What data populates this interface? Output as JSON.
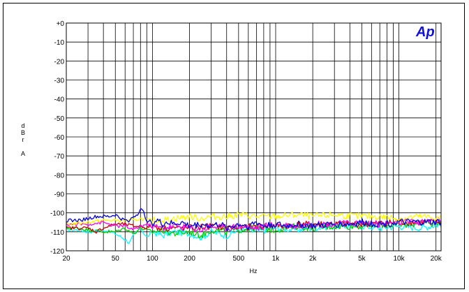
{
  "logo": {
    "text": "Ap",
    "color": "#1010e0"
  },
  "chart_data": {
    "type": "line",
    "title": "",
    "xlabel": "Hz",
    "ylabel": "dBr A",
    "ylabel_chars": [
      "d",
      "B",
      "r",
      "",
      "A"
    ],
    "x_scale": "log",
    "xlim": [
      20,
      22000
    ],
    "ylim": [
      -120,
      0
    ],
    "grid": true,
    "x_ticks": [
      {
        "value": 20,
        "label": "20"
      },
      {
        "value": 50,
        "label": "50"
      },
      {
        "value": 100,
        "label": "100"
      },
      {
        "value": 200,
        "label": "200"
      },
      {
        "value": 500,
        "label": "500"
      },
      {
        "value": 1000,
        "label": "1k"
      },
      {
        "value": 2000,
        "label": "2k"
      },
      {
        "value": 5000,
        "label": "5k"
      },
      {
        "value": 10000,
        "label": "10k"
      },
      {
        "value": 20000,
        "label": "20k"
      }
    ],
    "y_ticks": [
      {
        "value": 0,
        "label": "+0"
      },
      {
        "value": -10,
        "label": "-10"
      },
      {
        "value": -20,
        "label": "-20"
      },
      {
        "value": -30,
        "label": "-30"
      },
      {
        "value": -40,
        "label": "-40"
      },
      {
        "value": -50,
        "label": "-50"
      },
      {
        "value": -60,
        "label": "-60"
      },
      {
        "value": -70,
        "label": "-70"
      },
      {
        "value": -80,
        "label": "-80"
      },
      {
        "value": -90,
        "label": "-90"
      },
      {
        "value": -100,
        "label": "-100"
      },
      {
        "value": -110,
        "label": "-110"
      },
      {
        "value": -120,
        "label": "-120"
      }
    ],
    "series": [
      {
        "color": "#00ffff",
        "x": [
          20,
          25,
          30,
          40,
          50,
          60,
          65,
          70,
          80,
          90,
          100,
          120,
          150,
          200,
          250,
          300,
          400,
          500,
          700,
          1000,
          1500,
          2000,
          3000,
          5000,
          7000,
          10000,
          15000,
          22000
        ],
        "y": [
          -109,
          -109,
          -110,
          -109,
          -111,
          -114,
          -116,
          -112,
          -108,
          -113,
          -110,
          -112,
          -110,
          -111,
          -113,
          -110,
          -112,
          -109,
          -110,
          -108,
          -109,
          -108,
          -107,
          -107,
          -108,
          -107,
          -108,
          -106
        ]
      },
      {
        "color": "#00cc00",
        "x": [
          20,
          25,
          30,
          40,
          50,
          60,
          70,
          80,
          90,
          100,
          120,
          150,
          200,
          250,
          300,
          400,
          500,
          700,
          1000,
          1500,
          2000,
          3000,
          5000,
          7000,
          10000,
          15000,
          22000
        ],
        "y": [
          -108,
          -108,
          -109,
          -110,
          -110,
          -108,
          -111,
          -108,
          -109,
          -110,
          -109,
          -111,
          -110,
          -112,
          -109,
          -110,
          -109,
          -108,
          -109,
          -107,
          -108,
          -107,
          -107,
          -106,
          -107,
          -105,
          -106
        ]
      },
      {
        "color": "#cc0000",
        "x": [
          20,
          25,
          30,
          35,
          40,
          50,
          60,
          70,
          80,
          90,
          100,
          120,
          150,
          200,
          300,
          500,
          700,
          1000,
          2000,
          3000,
          5000,
          10000,
          22000
        ],
        "y": [
          -108,
          -108,
          -108,
          -110,
          -108,
          -106,
          -106,
          -107,
          -107,
          -108,
          -107,
          -108,
          -108,
          -108,
          -107,
          -108,
          -107,
          -107,
          -106,
          -106,
          -106,
          -105,
          -105
        ]
      },
      {
        "color": "#ff00ff",
        "x": [
          20,
          25,
          30,
          40,
          50,
          60,
          70,
          80,
          90,
          100,
          120,
          150,
          200,
          250,
          300,
          400,
          500,
          700,
          1000,
          1500,
          2000,
          3000,
          5000,
          7000,
          10000,
          15000,
          22000
        ],
        "y": [
          -106,
          -106,
          -106,
          -105,
          -107,
          -107,
          -109,
          -107,
          -106,
          -107,
          -108,
          -107,
          -108,
          -109,
          -107,
          -108,
          -107,
          -108,
          -106,
          -107,
          -106,
          -106,
          -105,
          -106,
          -105,
          -105,
          -104
        ]
      },
      {
        "color": "#ffff00",
        "x": [
          20,
          30,
          40,
          50,
          60,
          70,
          80,
          90,
          100,
          120,
          150,
          200,
          250,
          300,
          400,
          500,
          700,
          1000,
          1500,
          2000,
          3000,
          5000,
          7000,
          10000,
          15000,
          22000
        ],
        "y": [
          -106,
          -105,
          -104,
          -104,
          -104,
          -104,
          -103,
          -104,
          -104,
          -104,
          -103,
          -102,
          -103,
          -102,
          -102,
          -101,
          -102,
          -102,
          -101,
          -102,
          -101,
          -102,
          -102,
          -103,
          -102,
          -103
        ]
      },
      {
        "color": "#0000dd",
        "x": [
          20,
          25,
          30,
          35,
          40,
          45,
          50,
          55,
          60,
          65,
          70,
          75,
          80,
          85,
          90,
          100,
          110,
          120,
          130,
          150,
          170,
          200,
          250,
          300,
          350,
          400,
          500,
          600,
          700,
          800,
          1000,
          1200,
          1500,
          2000,
          3000,
          4000,
          5000,
          7000,
          10000,
          15000,
          22000
        ],
        "y": [
          -104,
          -104,
          -103,
          -102,
          -102,
          -102,
          -101,
          -103,
          -104,
          -104,
          -102,
          -101,
          -98,
          -100,
          -104,
          -105,
          -104,
          -106,
          -105,
          -106,
          -105,
          -107,
          -106,
          -107,
          -106,
          -108,
          -106,
          -107,
          -105,
          -107,
          -106,
          -107,
          -106,
          -107,
          -106,
          -106,
          -105,
          -106,
          -105,
          -105,
          -105
        ]
      }
    ]
  }
}
